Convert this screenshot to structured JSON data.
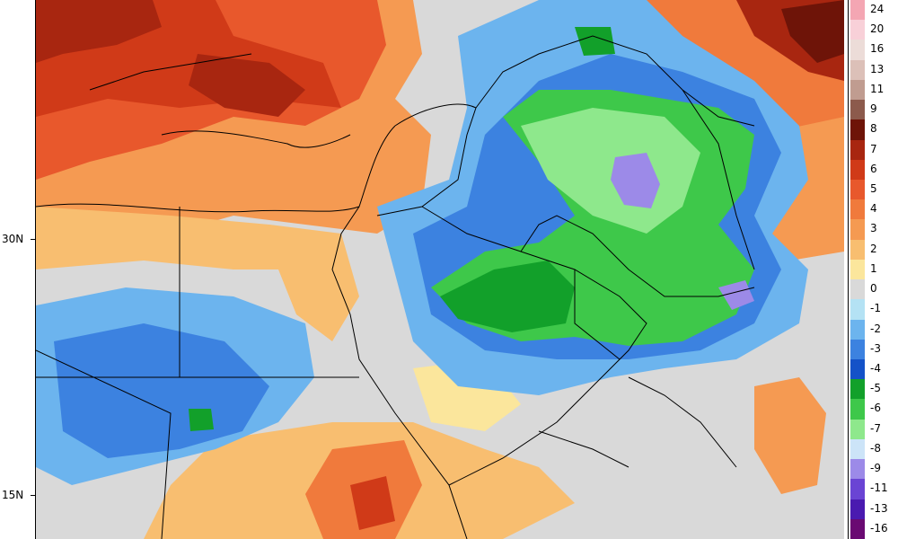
{
  "map": {
    "latitude_labels": [
      "30N",
      "15N"
    ]
  },
  "legend": {
    "entries": [
      {
        "label": "24",
        "color": "#f4a6b3"
      },
      {
        "label": "20",
        "color": "#f8d0d8"
      },
      {
        "label": "16",
        "color": "#ecdcd8"
      },
      {
        "label": "13",
        "color": "#dcc0b8"
      },
      {
        "label": "11",
        "color": "#c09c90"
      },
      {
        "label": "9",
        "color": "#8c5a4c"
      },
      {
        "label": "8",
        "color": "#6e1408"
      },
      {
        "label": "7",
        "color": "#a82610"
      },
      {
        "label": "6",
        "color": "#d03a18"
      },
      {
        "label": "5",
        "color": "#e8582c"
      },
      {
        "label": "4",
        "color": "#f07a3c"
      },
      {
        "label": "3",
        "color": "#f59a52"
      },
      {
        "label": "2",
        "color": "#f8be70"
      },
      {
        "label": "1",
        "color": "#fbe69c"
      },
      {
        "label": "0",
        "color": "#d9d9d9"
      },
      {
        "label": "-1",
        "color": "#b4e2f4"
      },
      {
        "label": "-2",
        "color": "#6cb4ee"
      },
      {
        "label": "-3",
        "color": "#3c82e0"
      },
      {
        "label": "-4",
        "color": "#1452c8"
      },
      {
        "label": "-5",
        "color": "#12a02a"
      },
      {
        "label": "-6",
        "color": "#3ec84a"
      },
      {
        "label": "-7",
        "color": "#8ee88c"
      },
      {
        "label": "-8",
        "color": "#cce4f8"
      },
      {
        "label": "-9",
        "color": "#9c8ae8"
      },
      {
        "label": "-11",
        "color": "#6a44d4"
      },
      {
        "label": "-13",
        "color": "#4a1ab0"
      },
      {
        "label": "-16",
        "color": "#6a0a72"
      }
    ]
  }
}
